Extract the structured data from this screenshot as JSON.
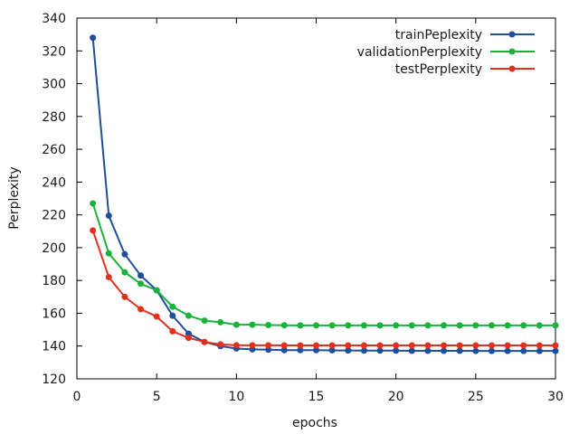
{
  "chart_data": {
    "type": "line",
    "title": "",
    "xlabel": "epochs",
    "ylabel": "Perplexity",
    "xlim": [
      0,
      30
    ],
    "ylim": [
      120,
      340
    ],
    "xticks": [
      0,
      5,
      10,
      15,
      20,
      25,
      30
    ],
    "yticks": [
      120,
      140,
      160,
      180,
      200,
      220,
      240,
      260,
      280,
      300,
      320,
      340
    ],
    "grid": false,
    "legend": "top-right",
    "x": [
      1,
      2,
      3,
      4,
      5,
      6,
      7,
      8,
      9,
      10,
      11,
      12,
      13,
      14,
      15,
      16,
      17,
      18,
      19,
      20,
      21,
      22,
      23,
      24,
      25,
      26,
      27,
      28,
      29,
      30
    ],
    "series": [
      {
        "name": "trainPeplexity",
        "color": "#1f4e9c",
        "values": [
          328,
          219.5,
          196,
          183,
          174,
          158.5,
          147.5,
          142.5,
          140,
          138.5,
          138,
          137.8,
          137.5,
          137.5,
          137.5,
          137.4,
          137.3,
          137.2,
          137.2,
          137.2,
          137.1,
          137.1,
          137.1,
          137.1,
          137,
          137,
          137,
          137,
          137,
          137
        ]
      },
      {
        "name": "validationPerplexity",
        "color": "#1ab23a",
        "values": [
          227,
          196.5,
          185,
          178,
          174,
          164,
          158.5,
          155.5,
          154.5,
          153,
          153,
          152.8,
          152.7,
          152.6,
          152.6,
          152.6,
          152.6,
          152.6,
          152.6,
          152.6,
          152.6,
          152.6,
          152.6,
          152.6,
          152.6,
          152.6,
          152.6,
          152.6,
          152.6,
          152.6
        ]
      },
      {
        "name": "testPerplexity",
        "color": "#e2301f",
        "values": [
          210.5,
          182,
          170,
          162.5,
          158,
          149,
          145,
          142.5,
          141,
          140.5,
          140.5,
          140.5,
          140.4,
          140.4,
          140.4,
          140.4,
          140.4,
          140.4,
          140.4,
          140.4,
          140.4,
          140.4,
          140.4,
          140.4,
          140.4,
          140.4,
          140.4,
          140.4,
          140.4,
          140.4
        ]
      }
    ]
  }
}
